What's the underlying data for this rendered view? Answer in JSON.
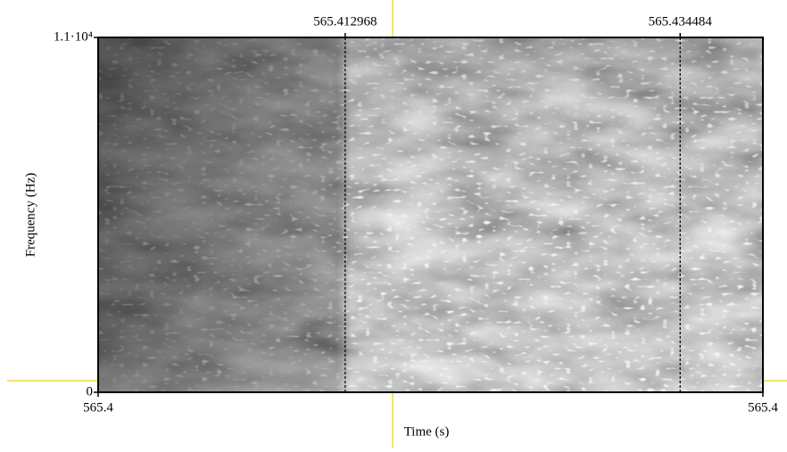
{
  "chart_data": {
    "type": "spectrogram",
    "xlabel": "Time (s)",
    "ylabel": "Frequency (Hz)",
    "xlim": [
      565.3971,
      565.4398
    ],
    "xticks": [
      {
        "value": 565.3971,
        "label": "565.4"
      },
      {
        "value": 565.4398,
        "label": "565.4"
      }
    ],
    "ylim": [
      0,
      11000
    ],
    "yticks": [
      0,
      {
        "value": 11000,
        "label": "1.1·10⁴"
      }
    ],
    "markers": [
      565.412968,
      565.434484
    ]
  }
}
